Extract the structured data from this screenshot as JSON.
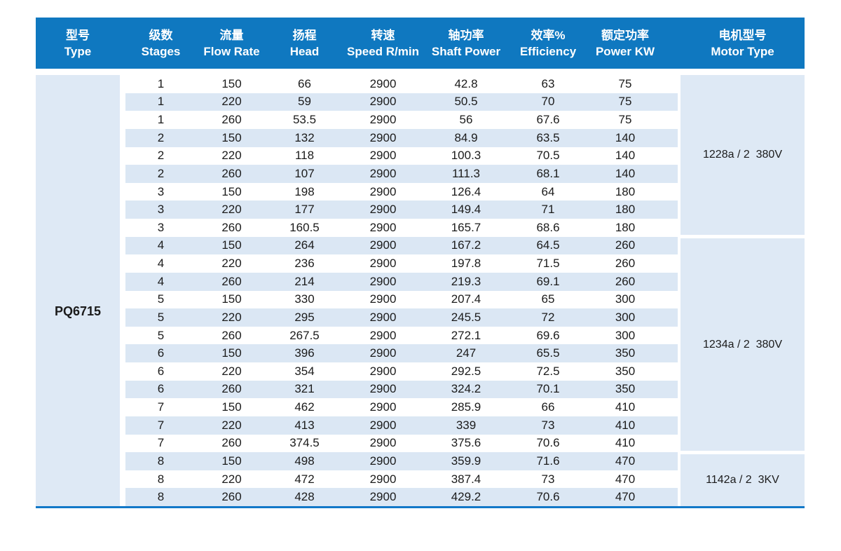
{
  "colors": {
    "header_bg": "#0f78c0",
    "stripe_bg": "#dbe7f4",
    "block_bg": "#dee9f5",
    "line": "#1278c8",
    "header_text": "#ffffff",
    "text": "#1b1b1b"
  },
  "table": {
    "columns": [
      {
        "zh": "型号",
        "en": "Type"
      },
      {
        "zh": "级数",
        "en": "Stages"
      },
      {
        "zh": "流量",
        "en": "Flow Rate"
      },
      {
        "zh": "扬程",
        "en": "Head"
      },
      {
        "zh": "转速",
        "en": "Speed R/min"
      },
      {
        "zh": "轴功率",
        "en": "Shaft Power"
      },
      {
        "zh": "效率%",
        "en": "Efficiency"
      },
      {
        "zh": "额定功率",
        "en": "Power KW"
      },
      {
        "zh": "电机型号",
        "en": "Motor Type"
      }
    ],
    "pump_type": "PQ6715",
    "rows": [
      [
        "1",
        "150",
        "66",
        "2900",
        "42.8",
        "63",
        "75"
      ],
      [
        "1",
        "220",
        "59",
        "2900",
        "50.5",
        "70",
        "75"
      ],
      [
        "1",
        "260",
        "53.5",
        "2900",
        "56",
        "67.6",
        "75"
      ],
      [
        "2",
        "150",
        "132",
        "2900",
        "84.9",
        "63.5",
        "140"
      ],
      [
        "2",
        "220",
        "118",
        "2900",
        "100.3",
        "70.5",
        "140"
      ],
      [
        "2",
        "260",
        "107",
        "2900",
        "111.3",
        "68.1",
        "140"
      ],
      [
        "3",
        "150",
        "198",
        "2900",
        "126.4",
        "64",
        "180"
      ],
      [
        "3",
        "220",
        "177",
        "2900",
        "149.4",
        "71",
        "180"
      ],
      [
        "3",
        "260",
        "160.5",
        "2900",
        "165.7",
        "68.6",
        "180"
      ],
      [
        "4",
        "150",
        "264",
        "2900",
        "167.2",
        "64.5",
        "260"
      ],
      [
        "4",
        "220",
        "236",
        "2900",
        "197.8",
        "71.5",
        "260"
      ],
      [
        "4",
        "260",
        "214",
        "2900",
        "219.3",
        "69.1",
        "260"
      ],
      [
        "5",
        "150",
        "330",
        "2900",
        "207.4",
        "65",
        "300"
      ],
      [
        "5",
        "220",
        "295",
        "2900",
        "245.5",
        "72",
        "300"
      ],
      [
        "5",
        "260",
        "267.5",
        "2900",
        "272.1",
        "69.6",
        "300"
      ],
      [
        "6",
        "150",
        "396",
        "2900",
        "247",
        "65.5",
        "350"
      ],
      [
        "6",
        "220",
        "354",
        "2900",
        "292.5",
        "72.5",
        "350"
      ],
      [
        "6",
        "260",
        "321",
        "2900",
        "324.2",
        "70.1",
        "350"
      ],
      [
        "7",
        "150",
        "462",
        "2900",
        "285.9",
        "66",
        "410"
      ],
      [
        "7",
        "220",
        "413",
        "2900",
        "339",
        "73",
        "410"
      ],
      [
        "7",
        "260",
        "374.5",
        "2900",
        "375.6",
        "70.6",
        "410"
      ],
      [
        "8",
        "150",
        "498",
        "2900",
        "359.9",
        "71.6",
        "470"
      ],
      [
        "8",
        "220",
        "472",
        "2900",
        "387.4",
        "73",
        "470"
      ],
      [
        "8",
        "260",
        "428",
        "2900",
        "429.2",
        "70.6",
        "470"
      ]
    ],
    "motor_groups": [
      {
        "label": "1228a / 2  380V",
        "rows": 9
      },
      {
        "label": "1234a / 2  380V",
        "rows": 12
      },
      {
        "label": "1142a / 2  3KV",
        "rows": 3
      }
    ]
  }
}
